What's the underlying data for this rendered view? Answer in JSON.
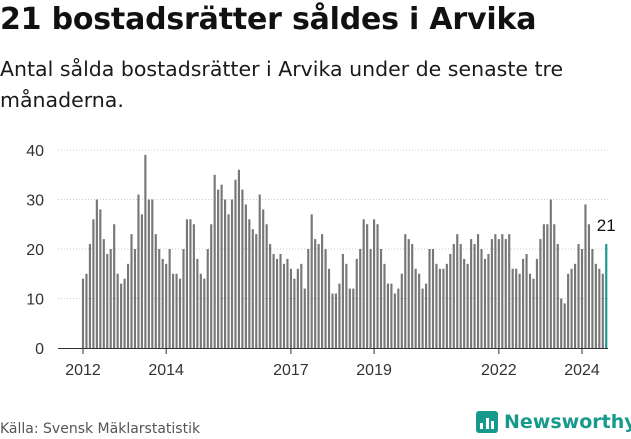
{
  "title": "21 bostadsrätter såldes i Arvika",
  "subtitle": "Antal sålda bostadsrätter i Arvika under de senaste tre månaderna.",
  "source": "Källa: Svensk Mäklarstatistik",
  "brand": "Newsworthy",
  "colors": {
    "bar": "#777777",
    "highlight": "#17998c",
    "grid": "#cccccc",
    "brand": "#17998c"
  },
  "chart_data": {
    "type": "bar",
    "title": "21 bostadsrätter såldes i Arvika",
    "subtitle": "Antal sålda bostadsrätter i Arvika under de senaste tre månaderna.",
    "xlabel": "",
    "ylabel": "",
    "ylim": [
      0,
      40
    ],
    "yticks": [
      0,
      10,
      20,
      30,
      40
    ],
    "xticks": [
      "2012",
      "2014",
      "2017",
      "2019",
      "2022",
      "2024"
    ],
    "x_range": [
      "2012-01",
      "2024-01"
    ],
    "last_value_label": "21",
    "series": [
      {
        "name": "Antal sålda bostadsrätter (rullande tre månader)",
        "start": "2012-01",
        "values": [
          14,
          15,
          21,
          26,
          30,
          28,
          22,
          19,
          20,
          25,
          15,
          13,
          14,
          17,
          23,
          20,
          31,
          27,
          39,
          30,
          30,
          23,
          20,
          18,
          17,
          20,
          15,
          15,
          14,
          20,
          26,
          26,
          25,
          18,
          15,
          14,
          20,
          25,
          35,
          32,
          33,
          30,
          27,
          30,
          34,
          36,
          32,
          29,
          26,
          24,
          23,
          31,
          28,
          25,
          21,
          19,
          18,
          19,
          17,
          18,
          16,
          14,
          16,
          17,
          12,
          20,
          27,
          22,
          21,
          23,
          20,
          16,
          11,
          11,
          13,
          19,
          17,
          12,
          12,
          18,
          20,
          26,
          25,
          20,
          26,
          25,
          20,
          17,
          13,
          13,
          11,
          12,
          15,
          23,
          22,
          21,
          16,
          15,
          12,
          13,
          20,
          20,
          17,
          16,
          16,
          17,
          19,
          21,
          23,
          21,
          18,
          17,
          22,
          21,
          23,
          20,
          18,
          19,
          22,
          23,
          22,
          23,
          22,
          23,
          16,
          16,
          15,
          18,
          19,
          15,
          14,
          18,
          22,
          25,
          25,
          30,
          25,
          21,
          10,
          9,
          15,
          16,
          17,
          21,
          20,
          29,
          25,
          20,
          17,
          16,
          15,
          21
        ],
        "highlight_last": true
      }
    ]
  }
}
